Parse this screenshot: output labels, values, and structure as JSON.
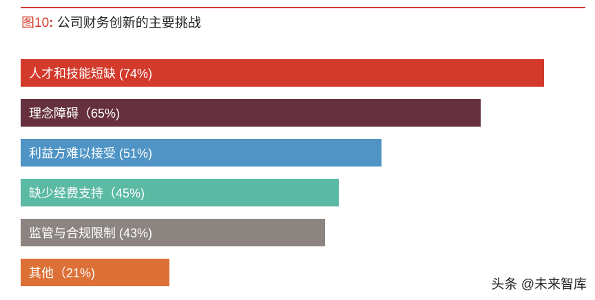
{
  "figure": {
    "label": "图10",
    "colon": ":",
    "title": "公司财务创新的主要挑战"
  },
  "watermark": "头条 @未来智库",
  "chart_data": {
    "type": "bar",
    "orientation": "horizontal",
    "title": "公司财务创新的主要挑战",
    "xlabel": "",
    "ylabel": "",
    "xlim": [
      0,
      74
    ],
    "grid": false,
    "categories": [
      "人才和技能短缺",
      "理念障碍",
      "利益方难以接受",
      "缺少经费支持",
      "监管与合规限制",
      "其他"
    ],
    "values": [
      74,
      65,
      51,
      45,
      43,
      21
    ],
    "labels": [
      "人才和技能短缺 (74%)",
      "理念障碍（65%)",
      "利益方难以接受 (51%)",
      "缺少经费支持（45%)",
      "监管与合规限制 (43%)",
      "其他（21%)"
    ],
    "colors": [
      "#d33a2c",
      "#66303e",
      "#4f94c4",
      "#5bbaa3",
      "#8b8480",
      "#dd7036"
    ]
  }
}
